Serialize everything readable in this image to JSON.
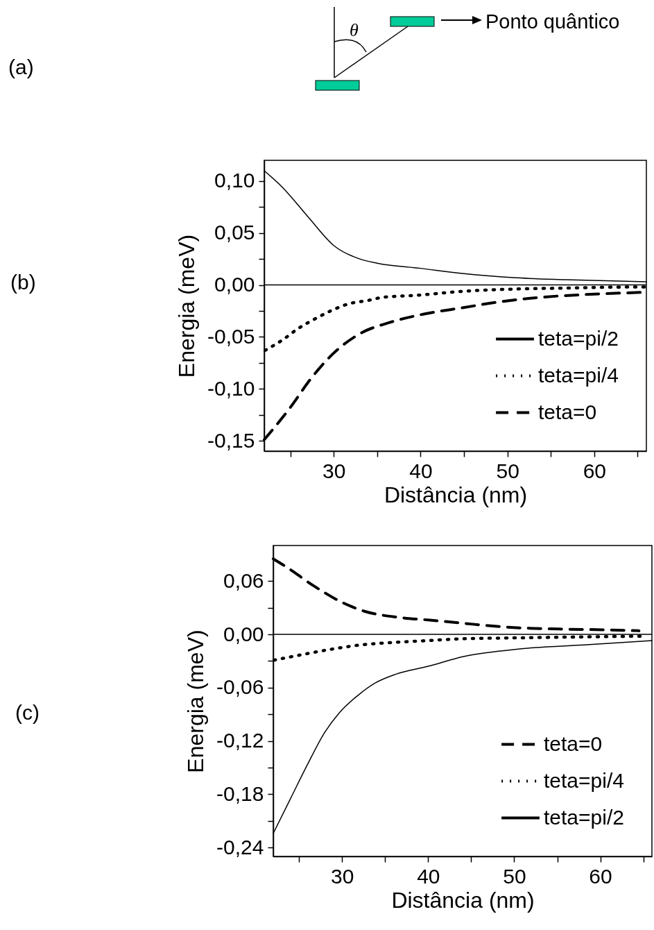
{
  "chart_data": [
    {
      "type": "other",
      "annotations": [
        "(a)",
        "θ",
        "Ponto quântico"
      ]
    },
    {
      "type": "line",
      "xlabel": "Distância (nm)",
      "ylabel": "Energia (meV)",
      "annotations": [
        "(b)"
      ],
      "xlim": [
        22,
        66
      ],
      "ylim": [
        -0.16,
        0.12
      ],
      "xticks": [
        {
          "value": 25,
          "label": null
        },
        30,
        {
          "value": 35,
          "label": null
        },
        40,
        {
          "value": 45,
          "label": null
        },
        50,
        {
          "value": 55,
          "label": null
        },
        60,
        {
          "value": 65,
          "label": null
        }
      ],
      "yticks": [
        {
          "value": -0.15,
          "label": "-0,15"
        },
        {
          "value": -0.125,
          "label": null
        },
        {
          "value": -0.1,
          "label": "-0,10"
        },
        {
          "value": -0.075,
          "label": null
        },
        {
          "value": -0.05,
          "label": "-0,05"
        },
        {
          "value": -0.025,
          "label": null
        },
        {
          "value": 0,
          "label": "0,00"
        },
        {
          "value": 0.025,
          "label": null
        },
        {
          "value": 0.05,
          "label": "0,05"
        },
        {
          "value": 0.075,
          "label": null
        },
        {
          "value": 0.1,
          "label": "0,10"
        }
      ],
      "grid": false,
      "legend": "bottom right",
      "ref_lines": [
        {
          "axis": "y",
          "value": 0,
          "color": "#000000"
        }
      ],
      "series": [
        {
          "name": "teta=pi/2",
          "color": "#000000",
          "line_style": "solid",
          "x": [
            22,
            24.1,
            27.1,
            30,
            33,
            35,
            40,
            44.8,
            50.7,
            56.7,
            66
          ],
          "values": [
            0.11,
            0.094,
            0.065,
            0.038,
            0.025,
            0.021,
            0.016,
            0.011,
            0.007,
            0.005,
            0.003
          ]
        },
        {
          "name": "teta=pi/4",
          "color": "#000000",
          "line_style": "dotted",
          "x": [
            22.1,
            24.1,
            25.9,
            28,
            29.9,
            31.8,
            33.9,
            35.6,
            39.5,
            45.1,
            50.7,
            56.7,
            64.4,
            66
          ],
          "values": [
            -0.063,
            -0.053,
            -0.042,
            -0.032,
            -0.024,
            -0.018,
            -0.015,
            -0.012,
            -0.01,
            -0.006,
            -0.004,
            -0.003,
            -0.002,
            -0.002
          ]
        },
        {
          "name": "teta=0",
          "color": "#000000",
          "line_style": "dashed",
          "x": [
            22,
            25,
            27.3,
            29.7,
            33,
            36.5,
            40.4,
            44.8,
            49.3,
            53.7,
            59.6,
            66
          ],
          "values": [
            -0.149,
            -0.118,
            -0.091,
            -0.068,
            -0.047,
            -0.036,
            -0.028,
            -0.022,
            -0.016,
            -0.012,
            -0.009,
            -0.007
          ]
        }
      ]
    },
    {
      "type": "line",
      "xlabel": "Distância (nm)",
      "ylabel": "Energia (meV)",
      "annotations": [
        "(c)"
      ],
      "xlim": [
        22,
        66
      ],
      "ylim": [
        -0.25,
        0.1
      ],
      "xticks": [
        {
          "value": 25,
          "label": null
        },
        30,
        {
          "value": 35,
          "label": null
        },
        40,
        {
          "value": 45,
          "label": null
        },
        50,
        {
          "value": 55,
          "label": null
        },
        60,
        {
          "value": 65,
          "label": null
        }
      ],
      "yticks": [
        {
          "value": -0.24,
          "label": "-0,24"
        },
        {
          "value": -0.21,
          "label": null
        },
        {
          "value": -0.18,
          "label": "-0,18"
        },
        {
          "value": -0.15,
          "label": null
        },
        {
          "value": -0.12,
          "label": "-0,12"
        },
        {
          "value": -0.09,
          "label": null
        },
        {
          "value": -0.06,
          "label": "-0,06"
        },
        {
          "value": -0.03,
          "label": null
        },
        {
          "value": 0,
          "label": "0,00"
        },
        {
          "value": 0.03,
          "label": null
        },
        {
          "value": 0.06,
          "label": "0,06"
        }
      ],
      "grid": false,
      "legend": "bottom right",
      "ref_lines": [
        {
          "axis": "y",
          "value": 0,
          "color": "#000000"
        }
      ],
      "series": [
        {
          "name": "teta=0",
          "color": "#000000",
          "line_style": "dashed",
          "x": [
            22,
            23.5,
            26.8,
            30,
            32.6,
            36.7,
            40.2,
            43.5,
            49.3,
            55.2,
            61,
            64.5
          ],
          "values": [
            0.085,
            0.076,
            0.054,
            0.036,
            0.026,
            0.019,
            0.016,
            0.013,
            0.008,
            0.006,
            0.005,
            0.004
          ]
        },
        {
          "name": "teta=pi/4",
          "color": "#000000",
          "line_style": "dotted",
          "x": [
            22.1,
            24.2,
            28,
            32.1,
            36.2,
            40,
            44.1,
            49.9,
            57,
            65.1
          ],
          "values": [
            -0.029,
            -0.025,
            -0.018,
            -0.012,
            -0.009,
            -0.007,
            -0.005,
            -0.004,
            -0.003,
            -0.002
          ]
        },
        {
          "name": "teta=pi/2",
          "color": "#000000",
          "line_style": "solid",
          "x": [
            22,
            23.9,
            25.9,
            28,
            29.7,
            31.8,
            33.8,
            36.2,
            40,
            44.1,
            48.2,
            52.3,
            58.1,
            66
          ],
          "values": [
            -0.224,
            -0.187,
            -0.148,
            -0.11,
            -0.088,
            -0.069,
            -0.055,
            -0.045,
            -0.036,
            -0.025,
            -0.019,
            -0.015,
            -0.012,
            -0.007
          ]
        }
      ]
    }
  ]
}
